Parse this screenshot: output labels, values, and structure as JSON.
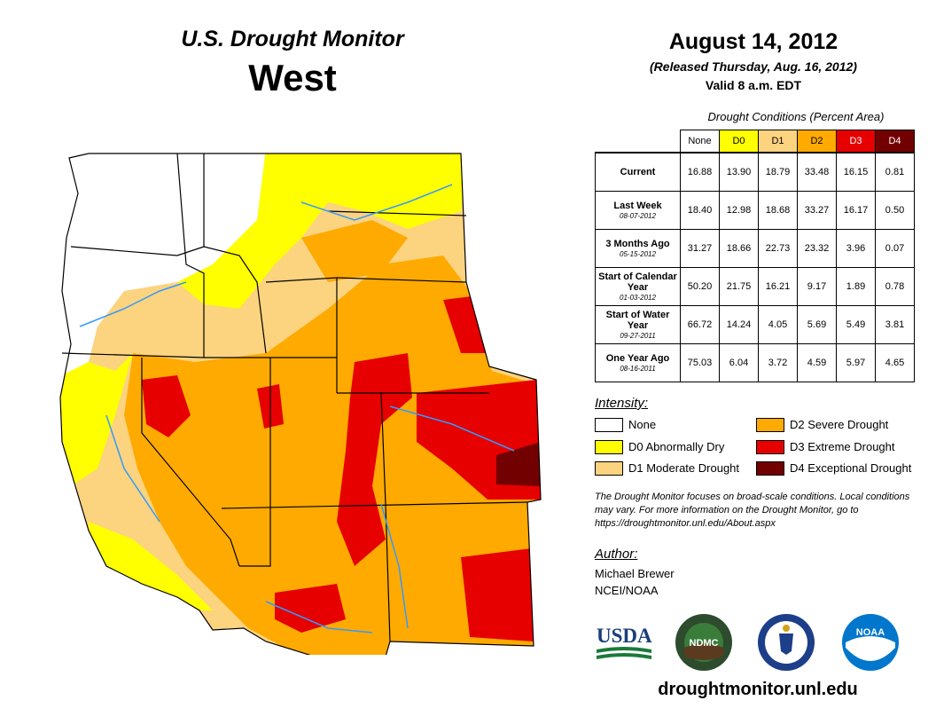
{
  "header": {
    "title": "U.S. Drought Monitor",
    "region": "West",
    "date": "August 14, 2012",
    "released": "(Released Thursday, Aug. 16, 2012)",
    "valid": "Valid 8 a.m. EDT"
  },
  "conditions": {
    "caption": "Drought Conditions (Percent Area)",
    "categories": [
      {
        "label": "None",
        "color": "#ffffff",
        "text_color": "#000000"
      },
      {
        "label": "D0",
        "color": "#ffff00",
        "text_color": "#000000"
      },
      {
        "label": "D1",
        "color": "#fcd37f",
        "text_color": "#000000"
      },
      {
        "label": "D2",
        "color": "#ffaa00",
        "text_color": "#000000"
      },
      {
        "label": "D3",
        "color": "#e60000",
        "text_color": "#ffffff"
      },
      {
        "label": "D4",
        "color": "#730000",
        "text_color": "#ffffff"
      }
    ],
    "rows": [
      {
        "label": "Current",
        "sub": "",
        "values": [
          "16.88",
          "13.90",
          "18.79",
          "33.48",
          "16.15",
          "0.81"
        ]
      },
      {
        "label": "Last Week",
        "sub": "08-07-2012",
        "values": [
          "18.40",
          "12.98",
          "18.68",
          "33.27",
          "16.17",
          "0.50"
        ]
      },
      {
        "label": "3 Months Ago",
        "sub": "05-15-2012",
        "values": [
          "31.27",
          "18.66",
          "22.73",
          "23.32",
          "3.96",
          "0.07"
        ]
      },
      {
        "label": "Start of Calendar Year",
        "sub": "01-03-2012",
        "values": [
          "50.20",
          "21.75",
          "16.21",
          "9.17",
          "1.89",
          "0.78"
        ]
      },
      {
        "label": "Start of Water Year",
        "sub": "09-27-2011",
        "values": [
          "66.72",
          "14.24",
          "4.05",
          "5.69",
          "5.49",
          "3.81"
        ]
      },
      {
        "label": "One Year Ago",
        "sub": "08-16-2011",
        "values": [
          "75.03",
          "6.04",
          "3.72",
          "4.59",
          "5.97",
          "4.65"
        ]
      }
    ]
  },
  "legend": {
    "title": "Intensity:",
    "items": [
      {
        "label": "None",
        "color": "#ffffff"
      },
      {
        "label": "D0 Abnormally Dry",
        "color": "#ffff00"
      },
      {
        "label": "D1 Moderate Drought",
        "color": "#fcd37f"
      },
      {
        "label": "D2 Severe Drought",
        "color": "#ffaa00"
      },
      {
        "label": "D3 Extreme Drought",
        "color": "#e60000"
      },
      {
        "label": "D4 Exceptional Drought",
        "color": "#730000"
      }
    ]
  },
  "note": "The Drought Monitor focuses on broad-scale conditions. Local conditions may vary. For more information on the Drought Monitor, go to https://droughtmonitor.unl.edu/About.aspx",
  "author": {
    "title": "Author:",
    "name": "Michael Brewer",
    "org": "NCEI/NOAA"
  },
  "logos": {
    "usda": "USDA",
    "ndmc": "NDMC",
    "noaa": "NOAA"
  },
  "footer_url": "droughtmonitor.unl.edu"
}
